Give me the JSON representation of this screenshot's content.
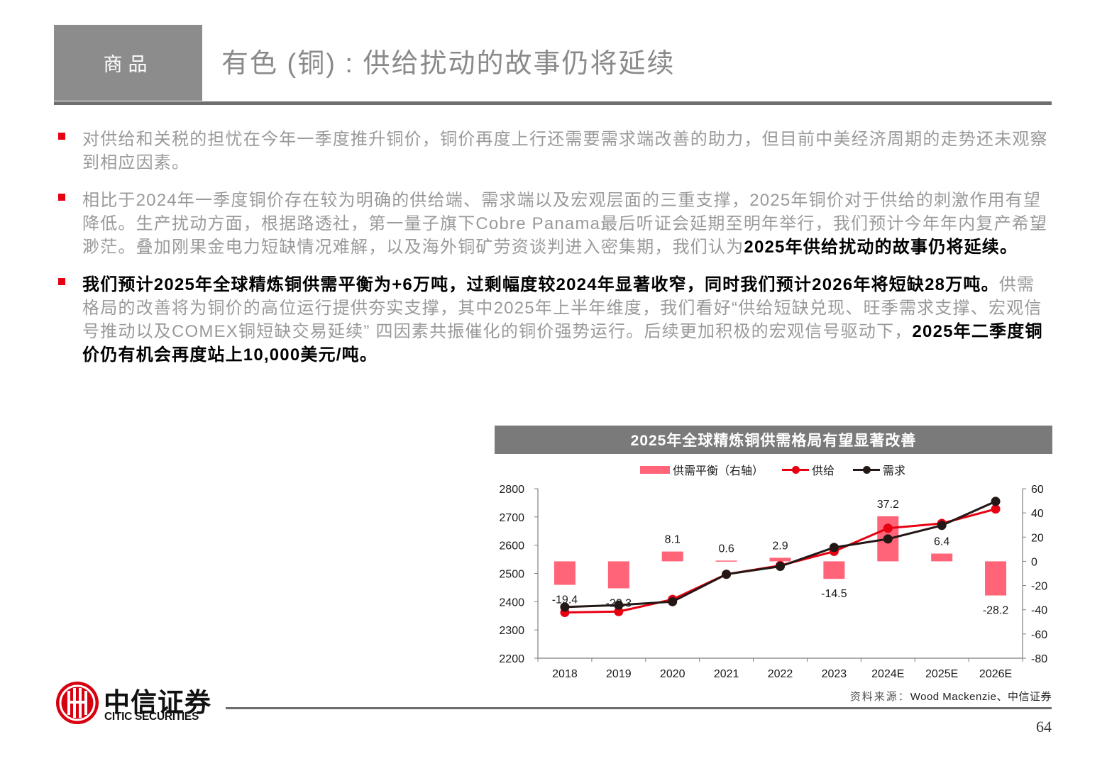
{
  "header": {
    "section_label": "商品",
    "title": "有色 (铜) : 供给扰动的故事仍将延续"
  },
  "bullets": [
    {
      "segments": [
        {
          "text": "对供给和关税的担忧在今年一季度推升铜价，铜价再度上行还需要需求端改善的助力，但目前中美经济周期的走势还未观察到相应因素。",
          "bold": false
        }
      ]
    },
    {
      "segments": [
        {
          "text": "相比于2024年一季度铜价存在较为明确的供给端、需求端以及宏观层面的三重支撑，2025年铜价对于供给的刺激作用有望降低。生产扰动方面，根据路透社，第一量子旗下Cobre Panama最后听证会延期至明年举行，我们预计今年年内复产希望渺茫。叠加刚果金电力短缺情况难解，以及海外铜矿劳资谈判进入密集期，我们认为",
          "bold": false
        },
        {
          "text": "2025年供给扰动的故事仍将延续。",
          "bold": true
        }
      ]
    },
    {
      "segments": [
        {
          "text": "我们预计2025年全球精炼铜供需平衡为+6万吨，过剩幅度较2024年显著收窄，同时我们预计2026年将短缺28万吨。",
          "bold": true
        },
        {
          "text": "供需格局的改善将为铜价的高位运行提供夯实支撑，其中2025年上半年维度，我们看好“供给短缺兑现、旺季需求支撑、宏观信号推动以及COMEX铜短缺交易延续” 四因素共振催化的铜价强势运行。后续更加积极的宏观信号驱动下，",
          "bold": false
        },
        {
          "text": "2025年二季度铜价仍有机会再度站上10,000美元/吨。",
          "bold": true
        }
      ]
    }
  ],
  "chart_data": {
    "type": "bar+line",
    "title": "2025年全球精炼铜供需格局有望显著改善",
    "categories": [
      "2018",
      "2019",
      "2020",
      "2021",
      "2022",
      "2023",
      "2024E",
      "2025E",
      "2026E"
    ],
    "series": [
      {
        "name": "供需平衡（右轴）",
        "type": "bar",
        "axis": "right",
        "color": "#ff6478",
        "values": [
          -19.4,
          -22.3,
          8.1,
          0.6,
          2.9,
          -14.5,
          37.2,
          6.4,
          -28.2
        ]
      },
      {
        "name": "供给",
        "type": "line",
        "axis": "left",
        "color": "#e60012",
        "values": [
          2362,
          2365,
          2408,
          2497,
          2528,
          2578,
          2660,
          2677,
          2728
        ]
      },
      {
        "name": "需求",
        "type": "line",
        "axis": "left",
        "color": "#231815",
        "values": [
          2381,
          2388,
          2400,
          2497,
          2525,
          2592,
          2622,
          2670,
          2755
        ]
      }
    ],
    "left_axis": {
      "min": 2200,
      "max": 2800,
      "ticks": [
        2800,
        2700,
        2600,
        2500,
        2400,
        2300,
        2200
      ]
    },
    "right_axis": {
      "min": -80,
      "max": 60,
      "ticks": [
        60,
        40,
        20,
        0,
        -20,
        -40,
        -60,
        -80
      ]
    },
    "data_labels": [
      "-19.4",
      "-22.3",
      "8.1",
      "0.6",
      "2.9",
      "-14.5",
      "37.2",
      "6.4",
      "-28.2"
    ],
    "legend_position": "top",
    "grid": false,
    "xlabel": "",
    "ylabel": ""
  },
  "legend": {
    "balance": "供需平衡（右轴）",
    "supply": "供给",
    "demand": "需求"
  },
  "colors": {
    "accent_red": "#e60012",
    "bar_pink": "#ff6478",
    "header_gray": "#8c8c8c",
    "chart_title_gray": "#7a7a7a"
  },
  "footer": {
    "source_label": "资料来源：",
    "source_value": "Wood Mackenzie、中信证券",
    "page_number": "64",
    "logo_cn": "中信证券",
    "logo_en": "CITIC SECURITIES"
  }
}
